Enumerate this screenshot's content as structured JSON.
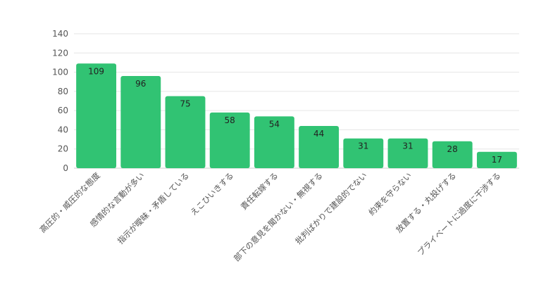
{
  "chart_data": {
    "type": "bar",
    "title": "",
    "xlabel": "",
    "ylabel": "",
    "categories": [
      "高圧的・威圧的な態度",
      "感情的な言動が多い",
      "指示が曖昧・矛盾している",
      "えこひいきする",
      "責任転嫁する",
      "部下の意見を聞かない・無視する",
      "批判ばかりで建設的でない",
      "約束を守らない",
      "放置する・丸投げする",
      "プライベートに過度に干渉する"
    ],
    "values": [
      109,
      96,
      75,
      58,
      54,
      44,
      31,
      31,
      28,
      17
    ],
    "ylim": [
      0,
      140
    ],
    "yticks": [
      0,
      20,
      40,
      60,
      80,
      100,
      120,
      140
    ],
    "grid": true,
    "data_labels": true,
    "bar_color": "#31c373"
  }
}
